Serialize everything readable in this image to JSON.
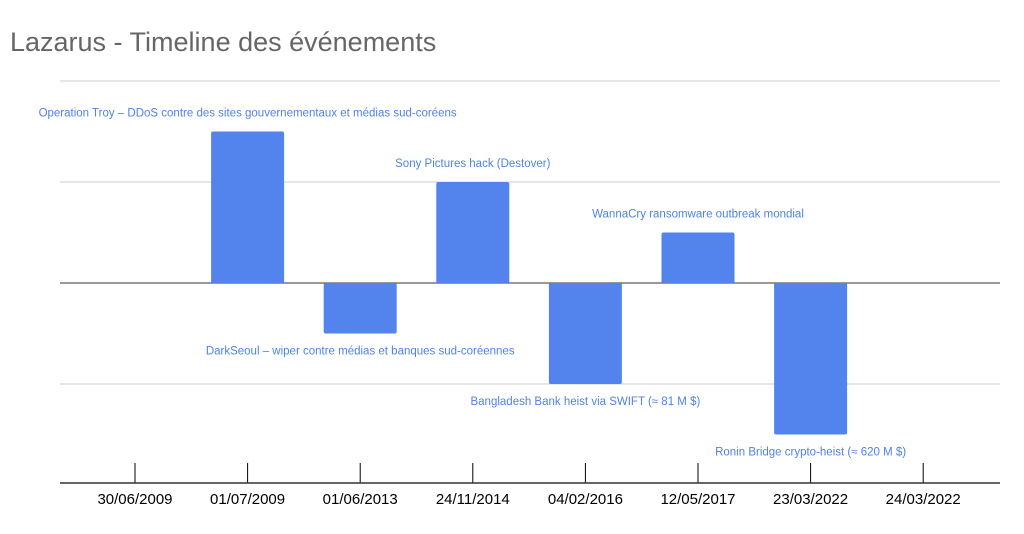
{
  "chart_data": {
    "type": "bar",
    "subtype": "timeline",
    "title": "Lazarus - Timeline des événements",
    "xlabel": "",
    "ylabel": "",
    "ylim": [
      -2,
      2
    ],
    "grid": true,
    "legend": "none",
    "bar_color": "#5383ec",
    "label_color": "#4f82ea",
    "categories": [
      "30/06/2009",
      "01/07/2009",
      "01/06/2013",
      "24/11/2014",
      "04/02/2016",
      "12/05/2017",
      "23/03/2022",
      "24/03/2022"
    ],
    "values": [
      null,
      1.5,
      -0.5,
      1,
      -1,
      0.5,
      -1.5,
      null
    ],
    "annotations": [
      null,
      "Operation Troy – DDoS contre des sites gouvernementaux et médias sud-coréens",
      "DarkSeoul – wiper contre médias et banques sud-coréennes",
      "Sony Pictures hack (Destover)",
      "Bangladesh Bank heist via SWIFT (≈ 81 M $)",
      "WannaCry ransomware outbreak mondial",
      "Ronin Bridge crypto-heist (≈ 620 M $)",
      null
    ]
  }
}
